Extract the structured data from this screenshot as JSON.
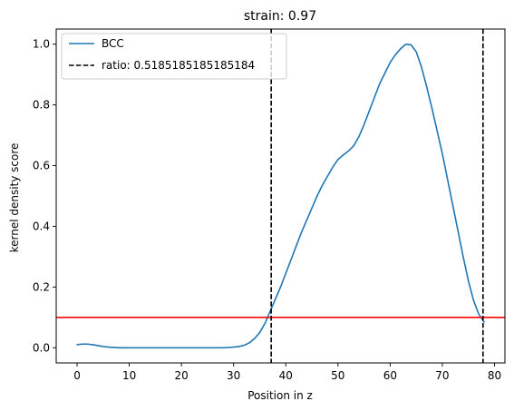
{
  "chart_data": {
    "type": "line",
    "title": "strain: 0.97",
    "xlabel": "Position in z",
    "ylabel": "kernel density score",
    "xlim": [
      -4,
      82
    ],
    "ylim": [
      -0.05,
      1.05
    ],
    "xticks": [
      0,
      10,
      20,
      30,
      40,
      50,
      60,
      70,
      80
    ],
    "yticks": [
      0.0,
      0.2,
      0.4,
      0.6,
      0.8,
      1.0
    ],
    "xtick_labels": [
      "0",
      "10",
      "20",
      "30",
      "40",
      "50",
      "60",
      "70",
      "80"
    ],
    "ytick_labels": [
      "0.0",
      "0.2",
      "0.4",
      "0.6",
      "0.8",
      "1.0"
    ],
    "grid": false,
    "legend_position": "top-left",
    "series": [
      {
        "name": "BCC",
        "color": "#1f77b4",
        "style": "solid",
        "x": [
          0,
          1,
          2,
          3,
          4,
          5,
          6,
          8,
          10,
          15,
          20,
          25,
          28,
          30,
          31,
          32,
          33,
          34,
          35,
          36,
          37,
          38,
          39,
          40,
          41,
          42,
          43,
          44,
          45,
          46,
          47,
          48,
          49,
          50,
          51,
          52,
          53,
          54,
          55,
          56,
          57,
          58,
          59,
          60,
          61,
          62,
          63,
          64,
          65,
          66,
          67,
          68,
          69,
          70,
          71,
          72,
          73,
          74,
          75,
          76,
          77,
          78
        ],
        "y": [
          0.01,
          0.012,
          0.012,
          0.01,
          0.007,
          0.004,
          0.002,
          0.0,
          0.0,
          0.0,
          0.0,
          0.0,
          0.0,
          0.002,
          0.004,
          0.008,
          0.016,
          0.03,
          0.05,
          0.08,
          0.12,
          0.16,
          0.2,
          0.245,
          0.29,
          0.335,
          0.38,
          0.42,
          0.46,
          0.5,
          0.535,
          0.565,
          0.595,
          0.62,
          0.635,
          0.648,
          0.665,
          0.695,
          0.735,
          0.78,
          0.825,
          0.87,
          0.905,
          0.94,
          0.965,
          0.985,
          1.0,
          0.998,
          0.975,
          0.925,
          0.86,
          0.79,
          0.715,
          0.64,
          0.555,
          0.47,
          0.385,
          0.3,
          0.22,
          0.155,
          0.11,
          0.085
        ]
      }
    ],
    "horizontal_lines": [
      {
        "y": 0.1,
        "color": "#ff0000",
        "style": "solid"
      }
    ],
    "vertical_lines": [
      {
        "name": "ratio: 0.5185185185185184",
        "x": 37.2,
        "color": "#000000",
        "style": "dashed"
      },
      {
        "x": 77.8,
        "color": "#000000",
        "style": "dashed"
      }
    ],
    "legend": [
      {
        "label": "BCC",
        "color": "#1f77b4",
        "style": "solid"
      },
      {
        "label": "ratio: 0.5185185185185184",
        "color": "#000000",
        "style": "dashed"
      }
    ]
  }
}
